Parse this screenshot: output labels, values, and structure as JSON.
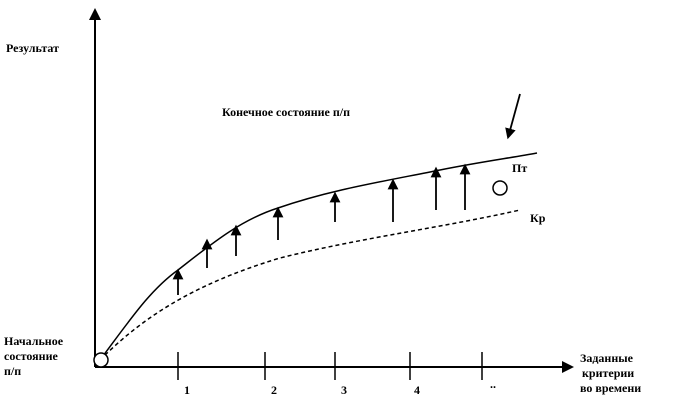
{
  "y_axis": {
    "label": "Результат"
  },
  "x_axis": {
    "label_lines": [
      "Заданные",
      "критерии",
      "во времени"
    ],
    "ticks": [
      "1",
      "2",
      "3",
      "4",
      ".."
    ]
  },
  "start_state": {
    "label_lines": [
      "Начальное",
      "состояние",
      "п/п"
    ]
  },
  "end_state": {
    "label": "Конечное состояние п/п"
  },
  "curves": {
    "upper": {
      "label": "Пт"
    },
    "lower": {
      "label": "Кр"
    }
  }
}
